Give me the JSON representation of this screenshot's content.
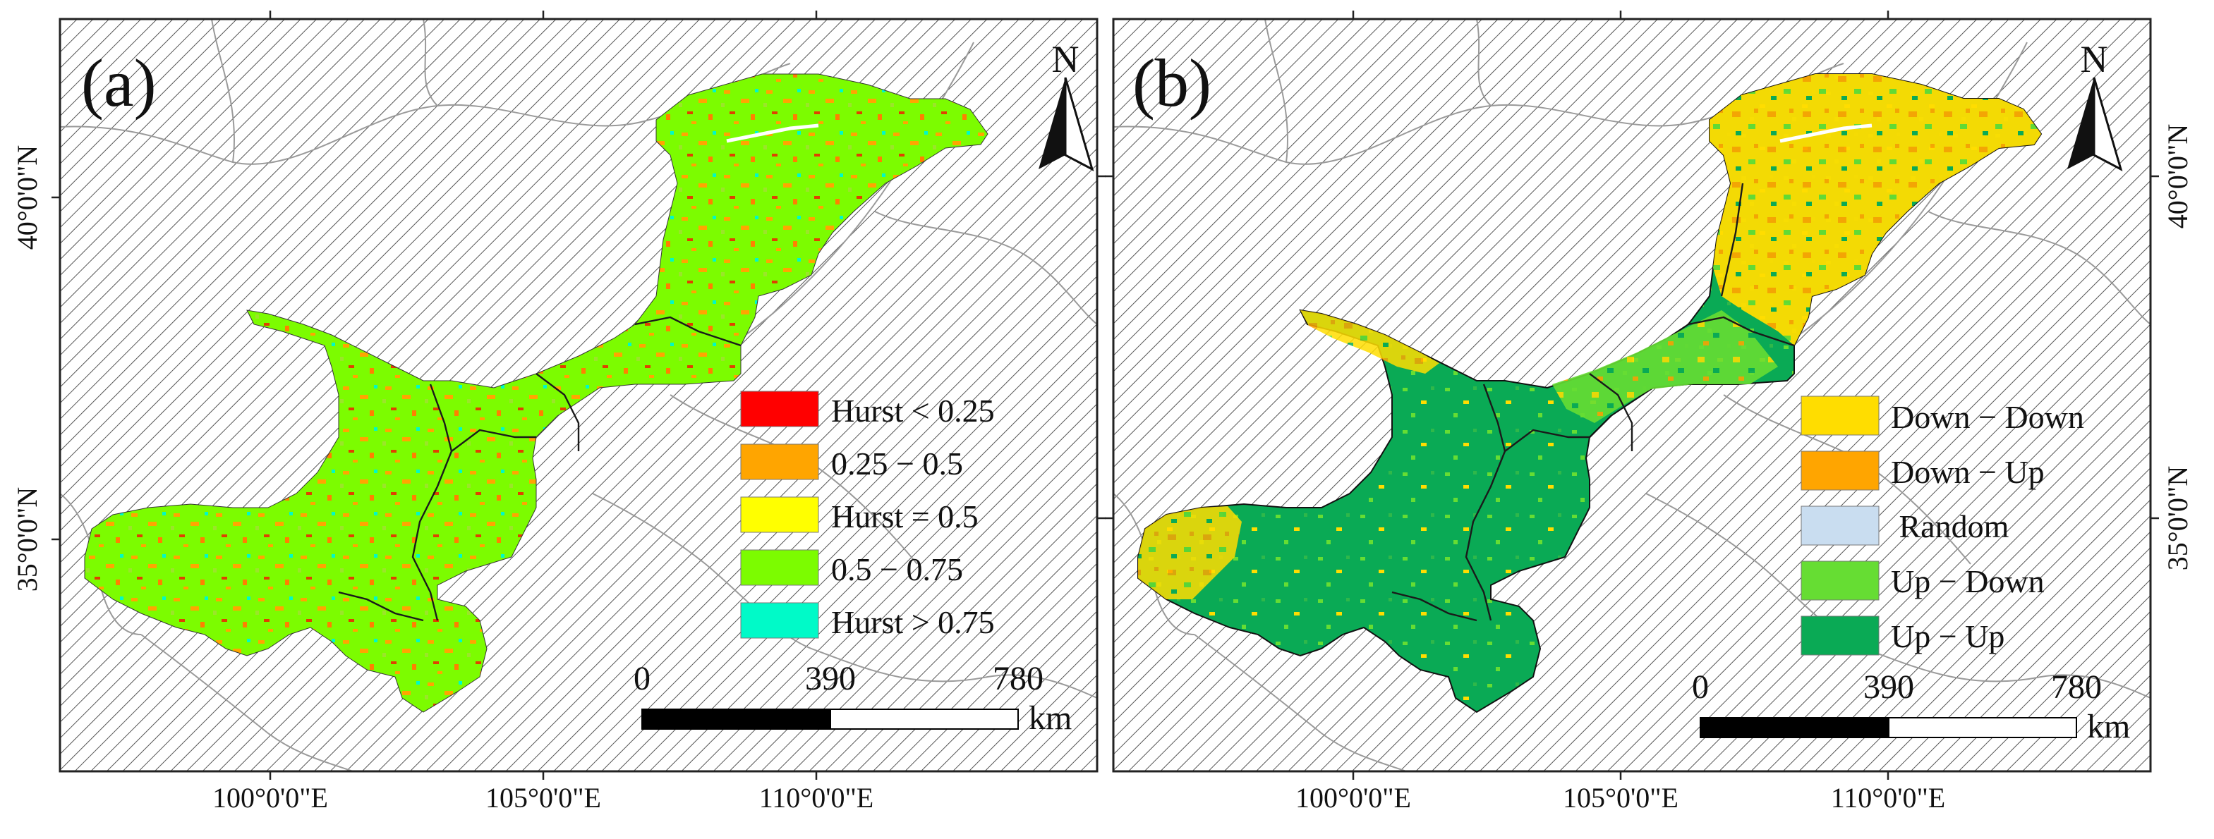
{
  "panels": [
    {
      "id": "a",
      "label": "(a)",
      "legend": [
        {
          "label": "Hurst < 0.25",
          "color": "#ff0000"
        },
        {
          "label": "0.25 − 0.5",
          "color": "#ffa500"
        },
        {
          "label": "Hurst = 0.5",
          "color": "#ffff00"
        },
        {
          "label": "0.5 − 0.75",
          "color": "#7cfc00"
        },
        {
          "label": "Hurst > 0.75",
          "color": "#00fac8"
        }
      ]
    },
    {
      "id": "b",
      "label": "(b)",
      "legend": [
        {
          "label": "Down − Down",
          "color": "#ffdd00"
        },
        {
          "label": "Down − Up",
          "color": "#ffa500"
        },
        {
          "label": " Random",
          "color": "#c9ddf0"
        },
        {
          "label": "Up − Down",
          "color": "#66dd33"
        },
        {
          "label": "Up − Up",
          "color": "#0aaa55"
        }
      ]
    }
  ],
  "north_label": "N",
  "scale_bar": {
    "ticks": [
      "0",
      "390",
      "780"
    ],
    "unit": "km"
  },
  "longitude_labels": [
    "100°0'0\"E",
    "105°0'0\"E",
    "110°0'0\"E"
  ],
  "latitude_labels": [
    "40°0'0\"N",
    "35°0'0\"N"
  ],
  "colors": {
    "frame": "#222222",
    "hatch": "#555555",
    "province_lines": "#9a9a9a"
  }
}
